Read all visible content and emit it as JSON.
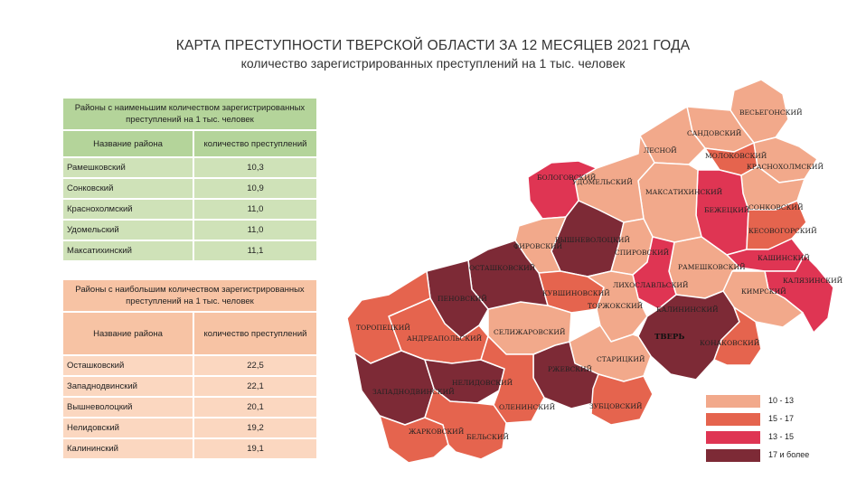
{
  "title": "КАРТА ПРЕСТУПНОСТИ ТВЕРСКОЙ ОБЛАСТИ ЗА 12 МЕСЯЦЕВ 2021 ГОДА",
  "subtitle": "количество зарегистрированных преступлений на 1 тыс. человек",
  "table_low": {
    "header": "Районы с наименьшим количеством зарегистрированных преступлений на 1 тыс. человек",
    "col_name": "Название района",
    "col_value": "количество преступлений",
    "rows": [
      {
        "name": "Рамешковский",
        "value": "10,3"
      },
      {
        "name": "Сонковский",
        "value": "10,9"
      },
      {
        "name": "Краснохолмский",
        "value": "11,0"
      },
      {
        "name": "Удомельский",
        "value": "11,0"
      },
      {
        "name": "Максатихинский",
        "value": "11,1"
      }
    ]
  },
  "table_high": {
    "header": "Районы с наибольшим количеством зарегистрированных преступлений на 1 тыс. человек",
    "col_name": "Название района",
    "col_value": "количество преступлений",
    "rows": [
      {
        "name": "Осташковский",
        "value": "22,5"
      },
      {
        "name": "Западнодвинский",
        "value": "22,1"
      },
      {
        "name": "Вышневолоцкий",
        "value": "20,1"
      },
      {
        "name": "Нелидовский",
        "value": "19,2"
      },
      {
        "name": "Калининский",
        "value": "19,1"
      }
    ]
  },
  "legend": [
    {
      "label": "10 - 13",
      "color": "#f2a98b"
    },
    {
      "label": "15 - 17",
      "color": "#e5644e"
    },
    {
      "label": "13 - 15",
      "color": "#df3553"
    },
    {
      "label": "17 и более",
      "color": "#7d2a36"
    }
  ],
  "map_labels": {
    "vesyegonsky": "ВЕСЬЕГОНСКИЙ",
    "sandovsky": "САНДОВСКИЙ",
    "lesnoy": "ЛЕСНОЙ",
    "molokovsky": "МОЛОКОВСКИЙ",
    "krasnokholmsky": "КРАСНОХОЛМСКИЙ",
    "bologovsky": "БОЛОГОВСКИЙ",
    "udomelsky": "УДОМЕЛЬСКИЙ",
    "maksatikhinsky": "МАКСАТИХИНСКИЙ",
    "sonkovsky": "СОНКОВСКИЙ",
    "bezhetsky": "БЕЖЕЦКИЙ",
    "kesovogorsky": "КЕСОВОГОРСКИЙ",
    "firovsky": "ФИРОВСКИЙ",
    "vyshnevolotsky": "ВЫШНЕВОЛОЦКИЙ",
    "spirovsky": "СПИРОВСКИЙ",
    "kashinsky": "КАШИНСКИЙ",
    "ramesh": "РАМЕШКОВСКИЙ",
    "kalyazinsky": "КАЛЯЗИНСКИЙ",
    "ostashkovsky": "ОСТАШКОВСКИЙ",
    "penovsky": "ПЕНОВСКИЙ",
    "kuvshinovsky": "КУВШИНОВСКИЙ",
    "likhoslavlsky": "ЛИХОСЛАВЛЬСКИЙ",
    "kimrsky": "КИМРСКИЙ",
    "torzhoksky": "ТОРЖОКСКИЙ",
    "kalininsky": "КАЛИНИНСКИЙ",
    "toropetsky": "ТОРОПЕЦКИЙ",
    "andreapolsky": "АНДРЕАПОЛЬСКИЙ",
    "selizharovsky": "СЕЛИЖАРОВСКИЙ",
    "tver": "ТВЕРЬ",
    "konakovsky": "КОНАКОВСКИЙ",
    "staritsky": "СТАРИЦКИЙ",
    "rzhevsky": "РЖЕВСКИЙ",
    "zapadnodvinsky": "ЗАПАДНОДВИНСКИЙ",
    "nelidovsky": "НЕЛИДОВСКИЙ",
    "oleninsky": "ОЛЕНИНСКИЙ",
    "zubtsovsky": "ЗУБЦОВСКИЙ",
    "zharkovsky": "ЖАРКОВСКИЙ",
    "belsky": "БЕЛЬСКИЙ"
  }
}
